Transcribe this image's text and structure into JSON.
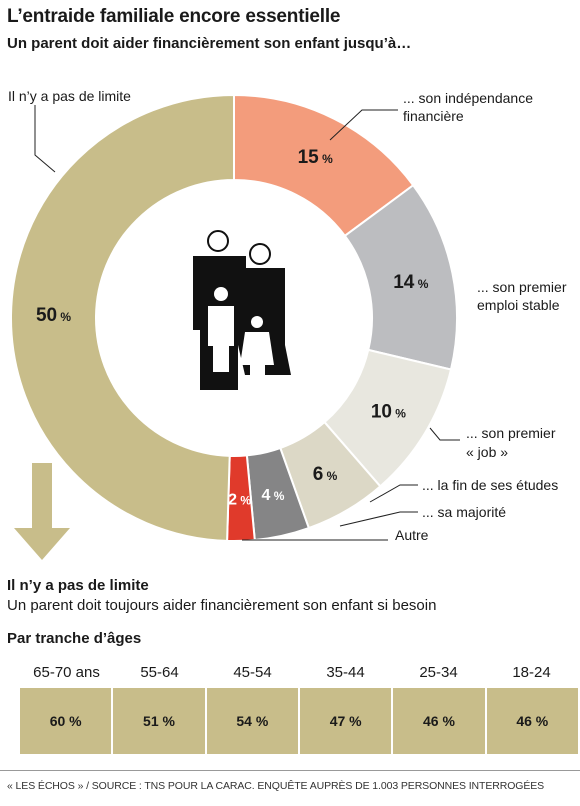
{
  "header": {
    "title": "L’entraide familiale encore essentielle",
    "subtitle": "Un parent doit aider financièrement son enfant jusqu’à…"
  },
  "chart_data": {
    "type": "pie",
    "style": "donut",
    "title": "L’entraide familiale encore essentielle",
    "subtitle": "Un parent doit aider financièrement son enfant jusqu’à…",
    "slices": [
      {
        "label": "... son indépendance financière",
        "value": 15,
        "display": "15 %",
        "color": "#f39c7c"
      },
      {
        "label": "... son premier emploi stable",
        "value": 14,
        "display": "14 %",
        "color": "#bcbdc0"
      },
      {
        "label": "... son premier « job »",
        "value": 10,
        "display": "10 %",
        "color": "#e8e7df"
      },
      {
        "label": "... la fin de ses études",
        "value": 6,
        "display": "6 %",
        "color": "#dcd8c6"
      },
      {
        "label": "... sa majorité",
        "value": 4,
        "display": "4 %",
        "color": "#858586"
      },
      {
        "label": "Autre",
        "value": 2,
        "display": "2 %",
        "color": "#e03a2b"
      },
      {
        "label": "Il n’y a pas de limite",
        "value": 50,
        "display": "50 %",
        "color": "#c8bd8a"
      }
    ]
  },
  "callouts": {
    "independance_1": "... son indépendance",
    "independance_2": "financière",
    "emploi_1": "... son premier",
    "emploi_2": "emploi stable",
    "job_1": "... son premier",
    "job_2": "« job »",
    "etudes": "... la fin de ses études",
    "majorite": "... sa majorité",
    "autre": "Autre",
    "limite": "Il n’y a pas de limite"
  },
  "no_limit": {
    "title": "Il n’y a pas de limite",
    "description": "Un parent doit toujours aider financièrement son enfant si besoin"
  },
  "age_breakdown": {
    "title": "Par tranche d’âges",
    "groups": [
      {
        "label": "65-70 ans",
        "value": "60 %"
      },
      {
        "label": "55-64",
        "value": "51 %"
      },
      {
        "label": "45-54",
        "value": "54 %"
      },
      {
        "label": "35-44",
        "value": "47 %"
      },
      {
        "label": "25-34",
        "value": "46 %"
      },
      {
        "label": "18-24",
        "value": "46 %"
      }
    ]
  },
  "source": "« LES ÉCHOS » / SOURCE : TNS POUR LA CARAC. ENQUÊTE AUPRÈS DE 1.003 PERSONNES INTERROGÉES",
  "icons": {
    "family": "family-icon",
    "arrow": "arrow-down-icon"
  }
}
